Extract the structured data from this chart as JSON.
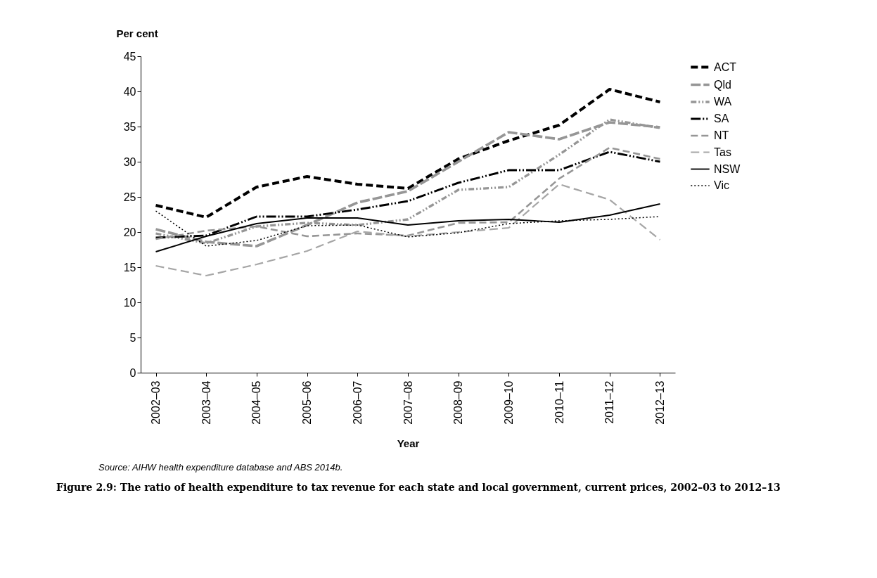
{
  "chart_data": {
    "type": "line",
    "title": "Figure 2.9: The ratio of health expenditure to tax revenue for each state and local government, current prices, 2002–03 to 2012–13",
    "xlabel": "Year",
    "ylabel": "Per cent",
    "annotations": [
      "Source: AIHW health expenditure database and ABS 2014b."
    ],
    "categories": [
      "2002–03",
      "2003–04",
      "2004–05",
      "2005–06",
      "2006–07",
      "2007–08",
      "2008–09",
      "2009–10",
      "2010–11",
      "2011–12",
      "2012–13"
    ],
    "ylim": [
      0,
      45
    ],
    "yticks": [
      0,
      5,
      10,
      15,
      20,
      25,
      30,
      35,
      40,
      45
    ],
    "grid": false,
    "legend": "top right",
    "marker": "none",
    "series": [
      {
        "name": "ACT",
        "color": "#000000",
        "line_style": "dashed",
        "values": [
          23.8,
          22.1,
          26.4,
          27.9,
          26.8,
          26.2,
          30.4,
          33.0,
          35.2,
          40.3,
          38.5
        ]
      },
      {
        "name": "Qld",
        "color": "#969696",
        "line_style": "dashed",
        "values": [
          20.4,
          18.6,
          18.0,
          21.0,
          24.2,
          25.8,
          30.0,
          34.2,
          33.2,
          35.6,
          34.9
        ]
      },
      {
        "name": "WA",
        "color": "#969696",
        "line_style": "dashed",
        "values": [
          19.8,
          18.4,
          20.8,
          21.3,
          21.0,
          21.8,
          26.0,
          26.4,
          31.0,
          36.0,
          34.8
        ]
      },
      {
        "name": "SA",
        "color": "#000000",
        "line_style": "dashed",
        "values": [
          19.2,
          19.5,
          22.2,
          22.2,
          23.2,
          24.4,
          27.0,
          28.8,
          28.8,
          31.4,
          30.0
        ]
      },
      {
        "name": "NT",
        "color": "#969696",
        "line_style": "dashed",
        "values": [
          19.0,
          20.2,
          20.8,
          19.4,
          19.8,
          19.5,
          21.3,
          21.4,
          27.6,
          32.0,
          30.4
        ]
      },
      {
        "name": "Tas",
        "color": "#a6a6a6",
        "line_style": "dashed",
        "values": [
          15.2,
          13.8,
          15.4,
          17.3,
          20.1,
          19.4,
          20.0,
          20.6,
          26.8,
          24.6,
          18.9
        ]
      },
      {
        "name": "NSW",
        "color": "#000000",
        "line_style": "solid",
        "values": [
          17.2,
          19.4,
          21.2,
          22.0,
          22.0,
          21.0,
          21.6,
          21.8,
          21.4,
          22.4,
          24.0
        ]
      },
      {
        "name": "Vic",
        "color": "#000000",
        "line_style": "dotted",
        "values": [
          23.0,
          18.0,
          18.8,
          20.9,
          21.0,
          19.3,
          19.9,
          21.2,
          21.6,
          21.8,
          22.2
        ]
      }
    ]
  }
}
